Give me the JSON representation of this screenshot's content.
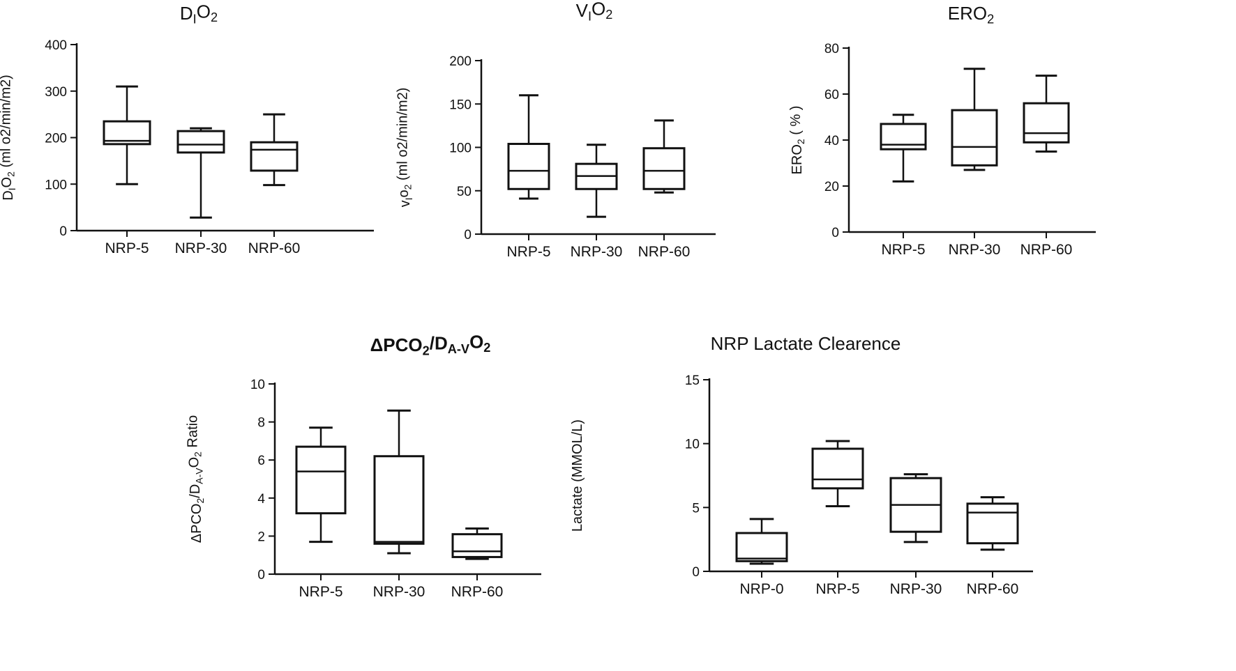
{
  "chart_data": [
    {
      "type": "box",
      "title_parts": [
        {
          "t": "D"
        },
        {
          "t": "I",
          "sub": true
        },
        {
          "t": "O"
        },
        {
          "t": "2",
          "sub": true
        }
      ],
      "ylabel_parts": [
        {
          "t": "D"
        },
        {
          "t": "I",
          "sub": true
        },
        {
          "t": "O"
        },
        {
          "t": "2",
          "sub": true
        },
        {
          "t": " (ml o2/min/m2)"
        }
      ],
      "ylim": [
        0,
        400
      ],
      "yticks": [
        "0",
        "100",
        "200",
        "300",
        "400"
      ],
      "categories": [
        "NRP-5",
        "NRP-30",
        "NRP-60"
      ],
      "boxes": [
        {
          "min": 100,
          "q1": 186,
          "median": 193,
          "q3": 235,
          "max": 310
        },
        {
          "min": 28,
          "q1": 168,
          "median": 185,
          "q3": 214,
          "max": 220
        },
        {
          "min": 98,
          "q1": 129,
          "median": 174,
          "q3": 190,
          "max": 250
        }
      ]
    },
    {
      "type": "box",
      "title_parts": [
        {
          "t": "V"
        },
        {
          "t": "I",
          "sub": true
        },
        {
          "t": "O"
        },
        {
          "t": "2",
          "sub": true
        }
      ],
      "ylabel_parts": [
        {
          "t": "v"
        },
        {
          "t": "I",
          "sub": true
        },
        {
          "t": "o"
        },
        {
          "t": "2",
          "sub": true
        },
        {
          "t": " (ml o2/min/m2)"
        }
      ],
      "ylim": [
        0,
        200
      ],
      "yticks": [
        "0",
        "50",
        "100",
        "150",
        "200"
      ],
      "categories": [
        "NRP-5",
        "NRP-30",
        "NRP-60"
      ],
      "boxes": [
        {
          "min": 41,
          "q1": 52,
          "median": 73,
          "q3": 104,
          "max": 160
        },
        {
          "min": 20,
          "q1": 52,
          "median": 67,
          "q3": 81,
          "max": 103
        },
        {
          "min": 48,
          "q1": 52,
          "median": 73,
          "q3": 99,
          "max": 131
        }
      ]
    },
    {
      "type": "box",
      "title_parts": [
        {
          "t": "ERO"
        },
        {
          "t": "2",
          "sub": true
        }
      ],
      "ylabel_parts": [
        {
          "t": "ERO"
        },
        {
          "t": "2",
          "sub": true
        },
        {
          "t": "  ( % )"
        }
      ],
      "ylim": [
        0,
        80
      ],
      "yticks": [
        "0",
        "20",
        "40",
        "60",
        "80"
      ],
      "categories": [
        "NRP-5",
        "NRP-30",
        "NRP-60"
      ],
      "boxes": [
        {
          "min": 22,
          "q1": 36,
          "median": 38,
          "q3": 47,
          "max": 51
        },
        {
          "min": 27,
          "q1": 29,
          "median": 37,
          "q3": 53,
          "max": 71
        },
        {
          "min": 35,
          "q1": 39,
          "median": 43,
          "q3": 56,
          "max": 68
        }
      ]
    },
    {
      "type": "box",
      "title_parts": [
        {
          "t": "ΔPCO"
        },
        {
          "t": "2",
          "sub": true
        },
        {
          "t": "/D"
        },
        {
          "t": "A-V",
          "sub": true
        },
        {
          "t": "O"
        },
        {
          "t": "2",
          "sub": true
        }
      ],
      "title_bold": true,
      "ylabel_parts": [
        {
          "t": "ΔPCO"
        },
        {
          "t": "2",
          "sub": true
        },
        {
          "t": "/D"
        },
        {
          "t": "A-V",
          "sub": true
        },
        {
          "t": "O"
        },
        {
          "t": "2",
          "sub": true
        },
        {
          "t": " Ratio"
        }
      ],
      "ylim": [
        0,
        10
      ],
      "yticks": [
        "0",
        "2",
        "4",
        "6",
        "8",
        "10"
      ],
      "categories": [
        "NRP-5",
        "NRP-30",
        "NRP-60"
      ],
      "boxes": [
        {
          "min": 1.7,
          "q1": 3.2,
          "median": 5.4,
          "q3": 6.7,
          "max": 7.7
        },
        {
          "min": 1.1,
          "q1": 1.6,
          "median": 1.7,
          "q3": 6.2,
          "max": 8.6
        },
        {
          "min": 0.8,
          "q1": 0.9,
          "median": 1.2,
          "q3": 2.1,
          "max": 2.4
        }
      ]
    },
    {
      "type": "box",
      "title_parts": [
        {
          "t": "NRP Lactate Clearence"
        }
      ],
      "ylabel_parts": [
        {
          "t": "Lactate (MMOL/L)"
        }
      ],
      "ylim": [
        0,
        15
      ],
      "yticks": [
        "0",
        "5",
        "10",
        "15"
      ],
      "categories": [
        "NRP-0",
        "NRP-5",
        "NRP-30",
        "NRP-60"
      ],
      "boxes": [
        {
          "min": 0.6,
          "q1": 0.8,
          "median": 1.0,
          "q3": 3.0,
          "max": 4.1
        },
        {
          "min": 5.1,
          "q1": 6.5,
          "median": 7.2,
          "q3": 9.6,
          "max": 10.2
        },
        {
          "min": 2.3,
          "q1": 3.1,
          "median": 5.2,
          "q3": 7.3,
          "max": 7.6
        },
        {
          "min": 1.7,
          "q1": 2.2,
          "median": 4.6,
          "q3": 5.3,
          "max": 5.8
        }
      ]
    }
  ]
}
